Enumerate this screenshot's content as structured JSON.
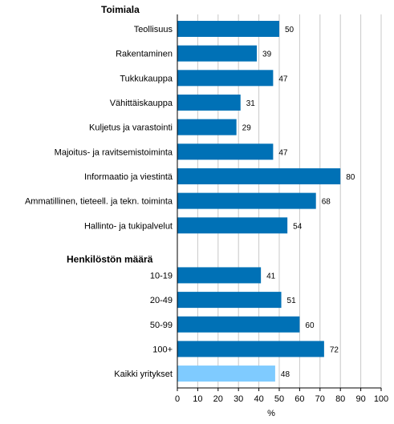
{
  "chart_data": {
    "type": "bar",
    "orientation": "horizontal",
    "unit_label": "%",
    "xlim": [
      0,
      100
    ],
    "x_ticks": [
      "0",
      "10",
      "20",
      "30",
      "40",
      "50",
      "60",
      "70",
      "80",
      "90",
      "100"
    ],
    "grid": true,
    "colors": {
      "primary": "#0071b6",
      "highlight": "#7fcbff",
      "grid": "#c8c8c8"
    },
    "sections": [
      {
        "heading": "Toimiala",
        "rows": [
          {
            "label": "Teollisuus",
            "value": 50
          },
          {
            "label": "Rakentaminen",
            "value": 39
          },
          {
            "label": "Tukkukauppa",
            "value": 47
          },
          {
            "label": "Vähittäiskauppa",
            "value": 31
          },
          {
            "label": "Kuljetus ja varastointi",
            "value": 29
          },
          {
            "label": "Majoitus- ja ravitsemistoiminta",
            "value": 47
          },
          {
            "label": "Informaatio ja viestintä",
            "value": 80
          },
          {
            "label": "Ammatillinen, tieteell. ja tekn. toiminta",
            "value": 68
          },
          {
            "label": "Hallinto- ja tukipalvelut",
            "value": 54
          }
        ]
      },
      {
        "heading": "Henkilöstön määrä",
        "rows": [
          {
            "label": "10-19",
            "value": 41
          },
          {
            "label": "20-49",
            "value": 51
          },
          {
            "label": "50-99",
            "value": 60
          },
          {
            "label": "100+",
            "value": 72
          }
        ]
      },
      {
        "heading": "",
        "rows": [
          {
            "label": "Kaikki yritykset",
            "value": 48,
            "highlight": true
          }
        ]
      }
    ]
  }
}
